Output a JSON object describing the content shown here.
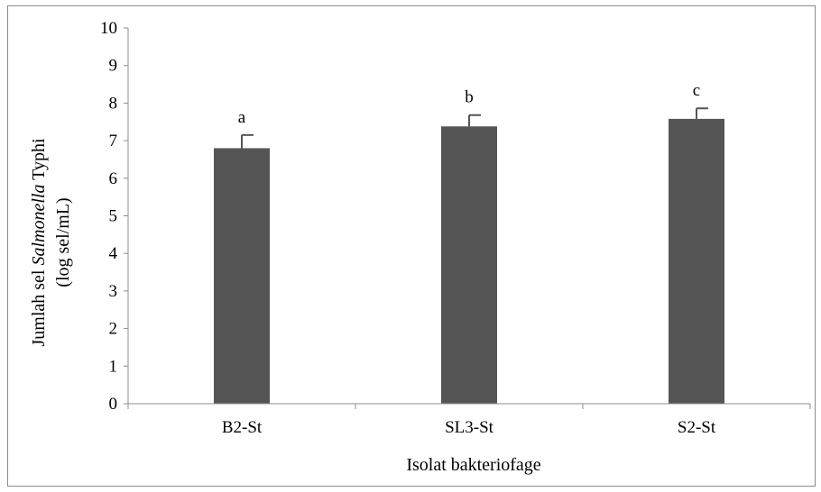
{
  "chart_data": {
    "type": "bar",
    "categories": [
      "B2-St",
      "SL3-St",
      "S2-St"
    ],
    "series": [
      {
        "values": [
          6.8,
          7.38,
          7.58
        ],
        "error_plus": [
          0.35,
          0.3,
          0.28
        ]
      }
    ],
    "significance_labels": [
      "a",
      "b",
      "c"
    ],
    "xlabel": "Isolat bakteriofage",
    "ylabel": {
      "line1_prefix": "Jumlah sel ",
      "line1_italic": "Salmonella",
      "line1_suffix": " Typhi",
      "line2": "(log sel/mL)"
    },
    "ylim": [
      0,
      10
    ],
    "yticks": [
      "0",
      "1",
      "2",
      "3",
      "4",
      "5",
      "6",
      "7",
      "8",
      "9",
      "10"
    ],
    "grid": false,
    "legend": "none",
    "colors": {
      "bar": "#555555",
      "axis": "#8c8c8c",
      "error_bar": "#555555"
    }
  }
}
